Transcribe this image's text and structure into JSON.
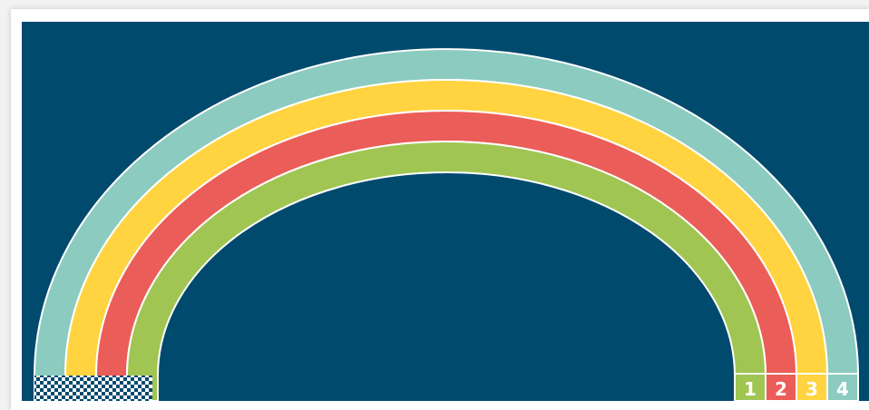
{
  "colors": {
    "background": "#004a6e",
    "outline": "#ffffff",
    "lane_1": "#a0c552",
    "lane_2": "#eb5d58",
    "lane_3": "#ffd440",
    "lane_4": "#8ccbc0",
    "checker_dark": "#004a6e",
    "checker_light": "#ffffff"
  },
  "lanes": [
    {
      "number": "1",
      "color": "#a0c552"
    },
    {
      "number": "2",
      "color": "#eb5d58"
    },
    {
      "number": "3",
      "color": "#ffd440"
    },
    {
      "number": "4",
      "color": "#8ccbc0"
    }
  ],
  "finish_line": {
    "pattern": "checkered"
  }
}
